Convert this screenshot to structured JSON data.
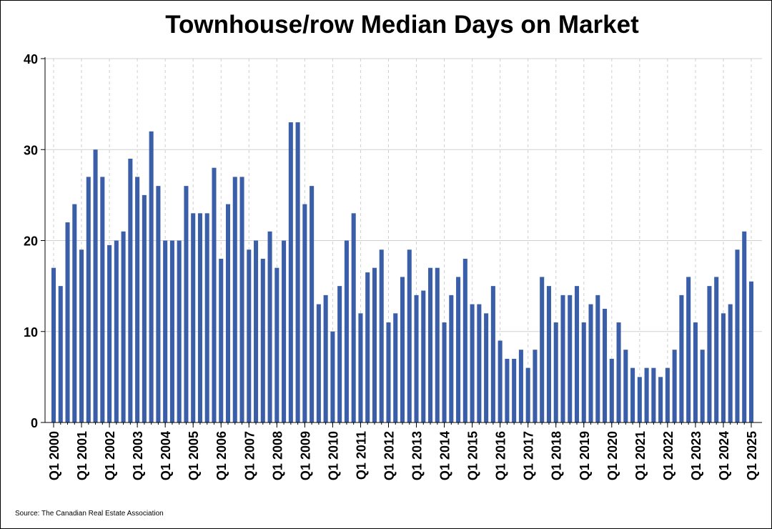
{
  "chart_data": {
    "type": "bar",
    "title": "Townhouse/row Median Days on Market",
    "source": "Source: The Canadian Real Estate Association",
    "ylim": [
      0,
      40
    ],
    "yticks": [
      0,
      10,
      20,
      30,
      40
    ],
    "grid": {
      "horizontal": true,
      "vertical_dashed": true
    },
    "bar_color": "#3a5fa8",
    "categories": [
      "Q1 2000",
      "Q2 2000",
      "Q3 2000",
      "Q4 2000",
      "Q1 2001",
      "Q2 2001",
      "Q3 2001",
      "Q4 2001",
      "Q1 2002",
      "Q2 2002",
      "Q3 2002",
      "Q4 2002",
      "Q1 2003",
      "Q2 2003",
      "Q3 2003",
      "Q4 2003",
      "Q1 2004",
      "Q2 2004",
      "Q3 2004",
      "Q4 2004",
      "Q1 2005",
      "Q2 2005",
      "Q3 2005",
      "Q4 2005",
      "Q1 2006",
      "Q2 2006",
      "Q3 2006",
      "Q4 2006",
      "Q1 2007",
      "Q2 2007",
      "Q3 2007",
      "Q4 2007",
      "Q1 2008",
      "Q2 2008",
      "Q3 2008",
      "Q4 2008",
      "Q1 2009",
      "Q2 2009",
      "Q3 2009",
      "Q4 2009",
      "Q1 2010",
      "Q2 2010",
      "Q3 2010",
      "Q4 2010",
      "Q1 2011",
      "Q2 2011",
      "Q3 2011",
      "Q4 2011",
      "Q1 2012",
      "Q2 2012",
      "Q3 2012",
      "Q4 2012",
      "Q1 2013",
      "Q2 2013",
      "Q3 2013",
      "Q4 2013",
      "Q1 2014",
      "Q2 2014",
      "Q3 2014",
      "Q4 2014",
      "Q1 2015",
      "Q2 2015",
      "Q3 2015",
      "Q4 2015",
      "Q1 2016",
      "Q2 2016",
      "Q3 2016",
      "Q4 2016",
      "Q1 2017",
      "Q2 2017",
      "Q3 2017",
      "Q4 2017",
      "Q1 2018",
      "Q2 2018",
      "Q3 2018",
      "Q4 2018",
      "Q1 2019",
      "Q2 2019",
      "Q3 2019",
      "Q4 2019",
      "Q1 2020",
      "Q2 2020",
      "Q3 2020",
      "Q4 2020",
      "Q1 2021",
      "Q2 2021",
      "Q3 2021",
      "Q4 2021",
      "Q1 2022",
      "Q2 2022",
      "Q3 2022",
      "Q4 2022",
      "Q1 2023",
      "Q2 2023",
      "Q3 2023",
      "Q4 2023",
      "Q1 2024",
      "Q2 2024",
      "Q3 2024",
      "Q4 2024",
      "Q1 2025"
    ],
    "tick_labels": [
      "Q1 2000",
      "Q1 2001",
      "Q1 2002",
      "Q1 2003",
      "Q1 2004",
      "Q1 2005",
      "Q1 2006",
      "Q1 2007",
      "Q1 2008",
      "Q1 2009",
      "Q1 2010",
      "Q1 2011",
      "Q1 2012",
      "Q1 2013",
      "Q1 2014",
      "Q1 2015",
      "Q1 2016",
      "Q1 2017",
      "Q1 2018",
      "Q1 2019",
      "Q1 2020",
      "Q1 2021",
      "Q1 2022",
      "Q1 2023",
      "Q1 2024",
      "Q1 2025"
    ],
    "values": [
      17,
      15,
      22,
      24,
      19,
      27,
      30,
      27,
      19.5,
      20,
      21,
      29,
      27,
      25,
      32,
      26,
      20,
      20,
      20,
      26,
      23,
      23,
      23,
      28,
      18,
      24,
      27,
      27,
      19,
      20,
      18,
      21,
      17,
      20,
      33,
      33,
      24,
      26,
      13,
      14,
      10,
      15,
      20,
      23,
      12,
      16.5,
      17,
      19,
      11,
      12,
      16,
      19,
      14,
      14.5,
      17,
      17,
      11,
      14,
      16,
      18,
      13,
      13,
      12,
      15,
      9,
      7,
      7,
      8,
      6,
      8,
      16,
      15,
      11,
      14,
      14,
      15,
      11,
      13,
      14,
      12.5,
      7,
      11,
      8,
      6,
      5,
      6,
      6,
      5,
      6,
      8,
      14,
      16,
      11,
      8,
      15,
      16,
      12,
      13,
      19,
      21,
      15.5
    ]
  }
}
